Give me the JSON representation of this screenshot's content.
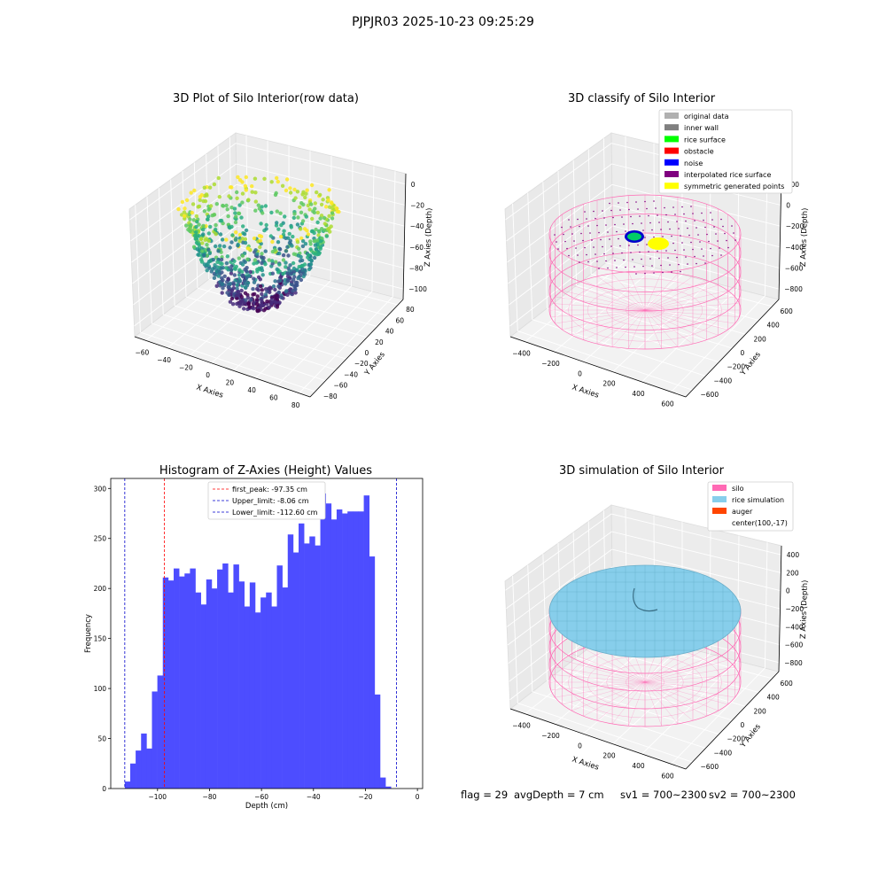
{
  "suptitle": "PJPJR03 2025-10-23 09:25:29",
  "footer": {
    "flag": "flag = 29",
    "avg_depth": "avgDepth = 7 cm",
    "sv1": "sv1 = 700~2300",
    "sv2": "sv2 = 700~2300"
  },
  "chart_data": [
    {
      "type": "scatter",
      "title": "3D Plot of Silo Interior(row data)",
      "xlabel": "X Axies",
      "ylabel": "Y Axies",
      "zlabel": "Z Axies (Depth)",
      "x_ticks": [
        -60,
        -40,
        -20,
        0,
        20,
        40,
        60,
        80
      ],
      "y_ticks": [
        -80,
        -60,
        -40,
        -20,
        0,
        20,
        40,
        60,
        80
      ],
      "z_ticks": [
        0,
        -20,
        -40,
        -60,
        -80,
        -100
      ],
      "colormap": "viridis",
      "grid": true
    },
    {
      "type": "scatter",
      "title": "3D classify of Silo Interior",
      "xlabel": "X Axies",
      "ylabel": "Y Axies",
      "zlabel": "Z Axies (Depth)",
      "x_ticks": [
        -400,
        -200,
        0,
        200,
        400,
        600
      ],
      "y_ticks": [
        -600,
        -400,
        -200,
        0,
        200,
        400,
        600
      ],
      "z_ticks": [
        200,
        0,
        -200,
        -400,
        -600,
        -800
      ],
      "z_top_tick_partial": "00",
      "legend_placement": "top-right",
      "legend": [
        {
          "label": "original data",
          "color": "#b0b0b0"
        },
        {
          "label": "inner wall",
          "color": "#808080"
        },
        {
          "label": "rice surface",
          "color": "#00ff00"
        },
        {
          "label": "obstacle",
          "color": "#ff0000"
        },
        {
          "label": "noise",
          "color": "#0000ff"
        },
        {
          "label": "interpolated rice surface",
          "color": "#800080"
        },
        {
          "label": "symmetric generated points",
          "color": "#ffff00"
        }
      ],
      "grid": true
    },
    {
      "type": "bar",
      "title": "Histogram of Z-Axies (Height) Values",
      "xlabel": "Depth (cm)",
      "ylabel": "Frequency",
      "xlim": [
        -118,
        2
      ],
      "ylim": [
        0,
        310
      ],
      "x_ticks": [
        -100,
        -80,
        -60,
        -40,
        -20,
        0
      ],
      "y_ticks": [
        0,
        50,
        100,
        150,
        200,
        250,
        300
      ],
      "bin_start": -112.6,
      "bin_width": 2.09,
      "values": [
        7,
        25,
        38,
        55,
        40,
        97,
        113,
        211,
        208,
        220,
        212,
        215,
        220,
        196,
        184,
        209,
        200,
        219,
        225,
        196,
        224,
        207,
        182,
        206,
        176,
        191,
        196,
        182,
        223,
        201,
        254,
        236,
        265,
        245,
        252,
        243,
        295,
        285,
        269,
        279,
        275,
        277,
        277,
        277,
        293,
        232,
        94,
        11,
        2
      ],
      "bar_color": "#4d4dff",
      "vlines": [
        {
          "label": "first_peak: -97.35 cm",
          "x": -97.35,
          "color": "#ff0000"
        },
        {
          "label": "Upper_limit: -8.06 cm",
          "x": -8.06,
          "color": "#0000cc"
        },
        {
          "label": "Lower_limit: -112.60 cm",
          "x": -112.6,
          "color": "#0000cc"
        }
      ],
      "legend_placement": "top-center"
    },
    {
      "type": "scatter",
      "title": "3D simulation of Silo Interior",
      "xlabel": "X Axies",
      "ylabel": "Y Axies",
      "zlabel": "Z Axies (Depth)",
      "x_ticks": [
        -400,
        -200,
        0,
        200,
        400,
        600
      ],
      "y_ticks": [
        -600,
        -400,
        -200,
        0,
        200,
        400,
        600
      ],
      "z_ticks": [
        400,
        200,
        0,
        -200,
        -400,
        -600,
        -800
      ],
      "legend_placement": "top-right",
      "legend": [
        {
          "label": "silo",
          "color": "#ff69b4"
        },
        {
          "label": "rice simulation",
          "color": "#87ceeb"
        },
        {
          "label": "auger",
          "color": "#ff4500"
        },
        {
          "label": "center(100,-17)",
          "color": ""
        }
      ],
      "grid": true
    }
  ]
}
